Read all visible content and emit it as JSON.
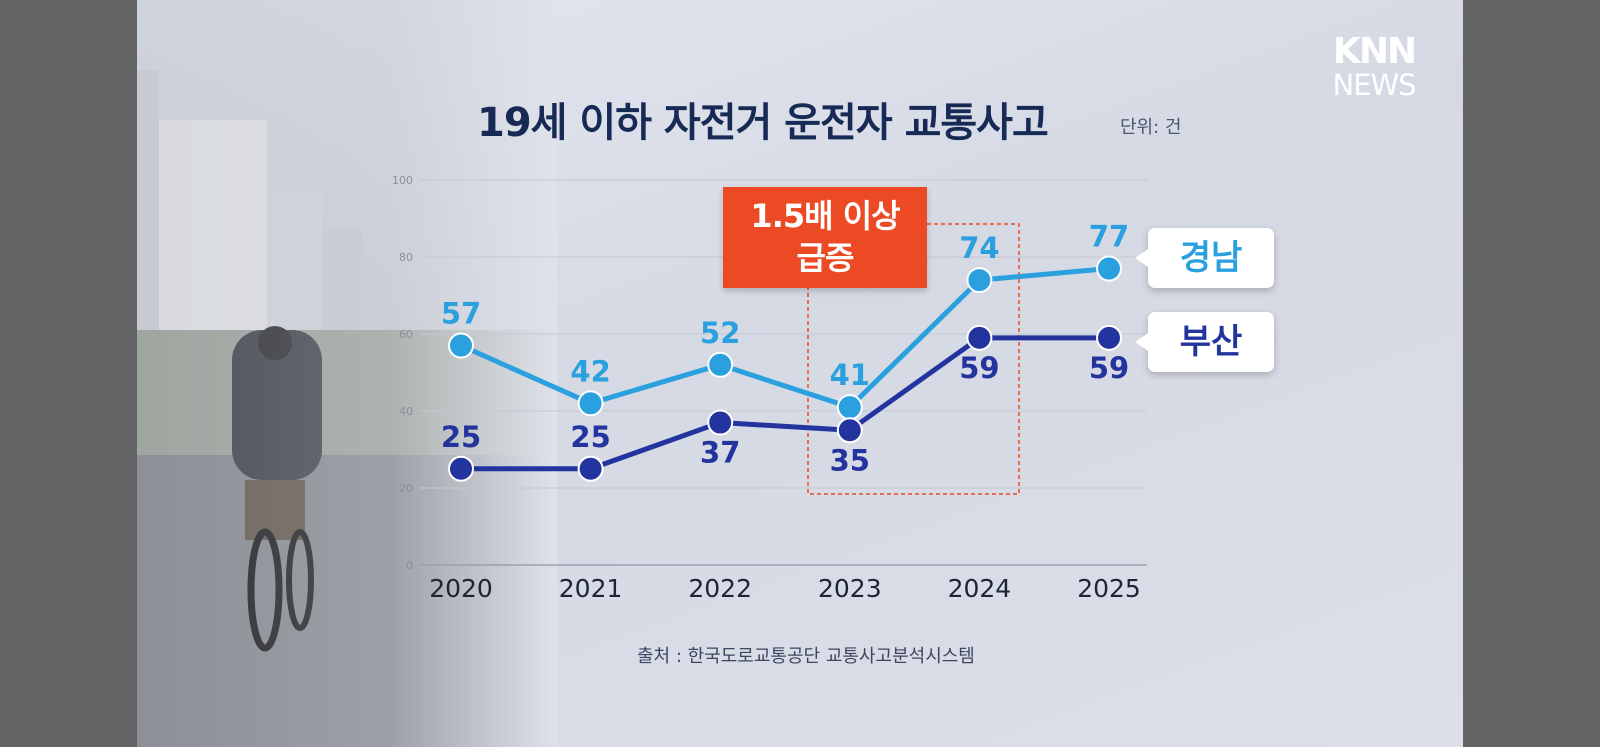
{
  "header": {
    "title": "19세 이하 자전거 운전자 교통사고",
    "unit": "단위: 건"
  },
  "logo": {
    "line1": "KNN",
    "line2": "NEWS"
  },
  "callout": {
    "line1": "1.5배 이상",
    "line2": "급증"
  },
  "source": "출처 : 한국도로교통공단 교통사고분석시스템",
  "colors": {
    "gyeongnam": "#2ba0de",
    "busan": "#24349e",
    "callout": "#ec4a25",
    "title": "#172a56"
  },
  "chart_data": {
    "type": "line",
    "title": "19세 이하 자전거 운전자 교통사고",
    "unit": "단위: 건",
    "categories": [
      "2020",
      "2021",
      "2022",
      "2023",
      "2024",
      "2025"
    ],
    "y_ticks": [
      0,
      20,
      40,
      60,
      80,
      100
    ],
    "ylim": [
      0,
      100
    ],
    "grid": true,
    "series": [
      {
        "name": "경남",
        "values": [
          57,
          42,
          52,
          41,
          74,
          77
        ]
      },
      {
        "name": "부산",
        "values": [
          25,
          25,
          37,
          35,
          59,
          59
        ]
      }
    ],
    "highlight": {
      "from": "2023",
      "to": "2024",
      "label": "1.5배 이상 급증"
    },
    "source": "출처 : 한국도로교통공단 교통사고분석시스템"
  }
}
